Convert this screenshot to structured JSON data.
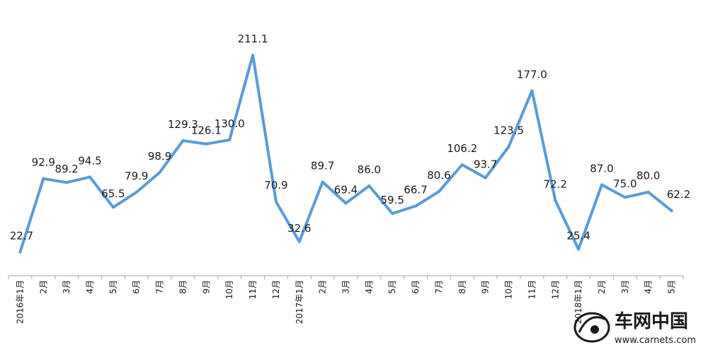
{
  "chart_data": {
    "type": "line",
    "categories": [
      "2016年1月",
      "2月",
      "3月",
      "4月",
      "5月",
      "6月",
      "7月",
      "8月",
      "9月",
      "10月",
      "11月",
      "12月",
      "2017年1月",
      "2月",
      "3月",
      "4月",
      "5月",
      "6月",
      "7月",
      "8月",
      "9月",
      "10月",
      "11月",
      "12月",
      "2018年1月",
      "2月",
      "3月",
      "4月",
      "5月"
    ],
    "values": [
      22.7,
      92.9,
      89.2,
      94.5,
      65.5,
      79.9,
      98.9,
      129.3,
      126.1,
      130.0,
      211.1,
      70.9,
      32.6,
      89.7,
      69.4,
      86.0,
      59.5,
      66.7,
      80.6,
      106.2,
      93.7,
      123.5,
      177.0,
      72.2,
      25.4,
      87.0,
      75.0,
      80.0,
      62.2
    ],
    "data_labels": [
      "22.7",
      "92.9",
      "89.2",
      "94.5",
      "65.5",
      "79.9",
      "98.9",
      "129.3",
      "126.1",
      "130.0",
      "211.1",
      "70.9",
      "32.6",
      "89.7",
      "69.4",
      "86.0",
      "59.5",
      "66.7",
      "80.6",
      "106.2",
      "93.7",
      "123.5",
      "177.0",
      "72.2",
      "25.4",
      "87.0",
      "75.0",
      "80.0",
      "62.2"
    ],
    "title": "",
    "xlabel": "",
    "ylabel": "",
    "ylim": [
      0,
      230
    ],
    "grid": false,
    "legend": "none",
    "line_color": "#5b9bd5"
  },
  "watermark": {
    "brand": "车网中国",
    "url": "www.carnets.com"
  }
}
